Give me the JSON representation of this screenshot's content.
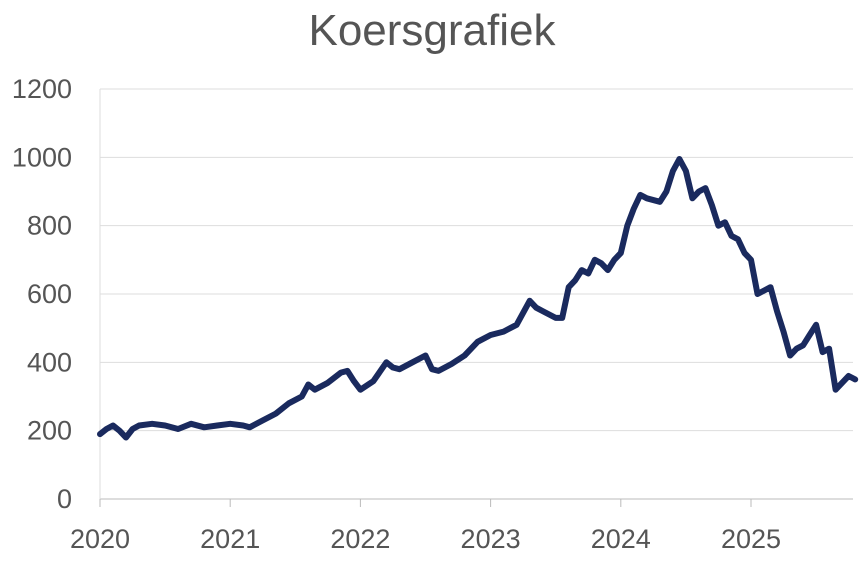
{
  "chart_data": {
    "type": "line",
    "title": "Koersgrafiek",
    "xlabel": "",
    "ylabel": "",
    "ylim": [
      0,
      1200
    ],
    "xlim": [
      2020,
      2025.8
    ],
    "y_ticks": [
      "0",
      "200",
      "400",
      "600",
      "800",
      "1000",
      "1200"
    ],
    "x_ticks": [
      "2020",
      "2021",
      "2022",
      "2023",
      "2024",
      "2025"
    ],
    "grid": true,
    "color": "#1a2a5e",
    "series": [
      {
        "x": [
          2020.0,
          2020.05,
          2020.1,
          2020.15,
          2020.2,
          2020.25,
          2020.3,
          2020.4,
          2020.5,
          2020.6,
          2020.7,
          2020.8,
          2020.9,
          2021.0,
          2021.1,
          2021.15,
          2021.25,
          2021.35,
          2021.45,
          2021.55,
          2021.6,
          2021.65,
          2021.75,
          2021.85,
          2021.9,
          2021.95,
          2022.0,
          2022.1,
          2022.2,
          2022.25,
          2022.3,
          2022.4,
          2022.5,
          2022.55,
          2022.6,
          2022.7,
          2022.8,
          2022.9,
          2023.0,
          2023.1,
          2023.2,
          2023.3,
          2023.35,
          2023.4,
          2023.5,
          2023.55,
          2023.6,
          2023.65,
          2023.7,
          2023.75,
          2023.8,
          2023.85,
          2023.9,
          2023.95,
          2024.0,
          2024.05,
          2024.1,
          2024.15,
          2024.2,
          2024.3,
          2024.35,
          2024.4,
          2024.45,
          2024.5,
          2024.55,
          2024.6,
          2024.65,
          2024.7,
          2024.75,
          2024.8,
          2024.85,
          2024.9,
          2024.95,
          2025.0,
          2025.05,
          2025.1,
          2025.15,
          2025.2,
          2025.25,
          2025.3,
          2025.35,
          2025.4,
          2025.45,
          2025.5,
          2025.55,
          2025.6,
          2025.65,
          2025.7,
          2025.75,
          2025.8
        ],
        "values": [
          190,
          205,
          215,
          200,
          180,
          205,
          215,
          220,
          215,
          205,
          220,
          210,
          215,
          220,
          215,
          210,
          230,
          250,
          280,
          300,
          335,
          320,
          340,
          370,
          375,
          345,
          320,
          345,
          400,
          385,
          380,
          400,
          420,
          380,
          375,
          395,
          420,
          460,
          480,
          490,
          510,
          580,
          560,
          550,
          530,
          530,
          620,
          640,
          670,
          660,
          700,
          690,
          670,
          700,
          720,
          800,
          850,
          890,
          880,
          870,
          900,
          960,
          995,
          960,
          880,
          900,
          910,
          860,
          800,
          810,
          770,
          760,
          720,
          700,
          600,
          610,
          620,
          550,
          490,
          420,
          440,
          450,
          480,
          510,
          430,
          440,
          320,
          340,
          360,
          350
        ]
      }
    ]
  }
}
